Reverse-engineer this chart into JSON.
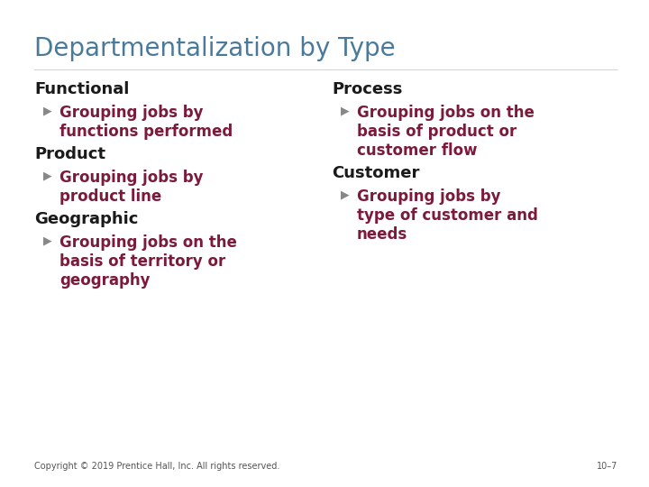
{
  "title": "Departmentalization by Type",
  "title_color": "#4a7a9b",
  "title_fontsize": 20,
  "background_color": "#ffffff",
  "heading_color": "#1a1a1a",
  "heading_fontsize": 13,
  "heading_bold": false,
  "bullet_color": "#7b1a3a",
  "bullet_fontsize": 12,
  "bullet_bold": true,
  "bullet_sym_color": "#888888",
  "footer_text": "Copyright © 2019 Prentice Hall, Inc. All rights reserved.",
  "footer_right": "10–7",
  "footer_fontsize": 7,
  "footer_color": "#555555",
  "left_col": [
    {
      "type": "heading",
      "text": "Functional"
    },
    {
      "type": "bullet",
      "lines": [
        "Grouping jobs by",
        "functions performed"
      ]
    },
    {
      "type": "heading",
      "text": "Product"
    },
    {
      "type": "bullet",
      "lines": [
        "Grouping jobs by",
        "product line"
      ]
    },
    {
      "type": "heading",
      "text": "Geographic"
    },
    {
      "type": "bullet",
      "lines": [
        "Grouping jobs on the",
        "basis of territory or",
        "geography"
      ]
    }
  ],
  "right_col": [
    {
      "type": "heading",
      "text": "Process"
    },
    {
      "type": "bullet",
      "lines": [
        "Grouping jobs on the",
        "basis of product or",
        "customer flow"
      ]
    },
    {
      "type": "heading",
      "text": "Customer"
    },
    {
      "type": "bullet",
      "lines": [
        "Grouping jobs by",
        "type of customer and",
        "needs"
      ]
    }
  ]
}
